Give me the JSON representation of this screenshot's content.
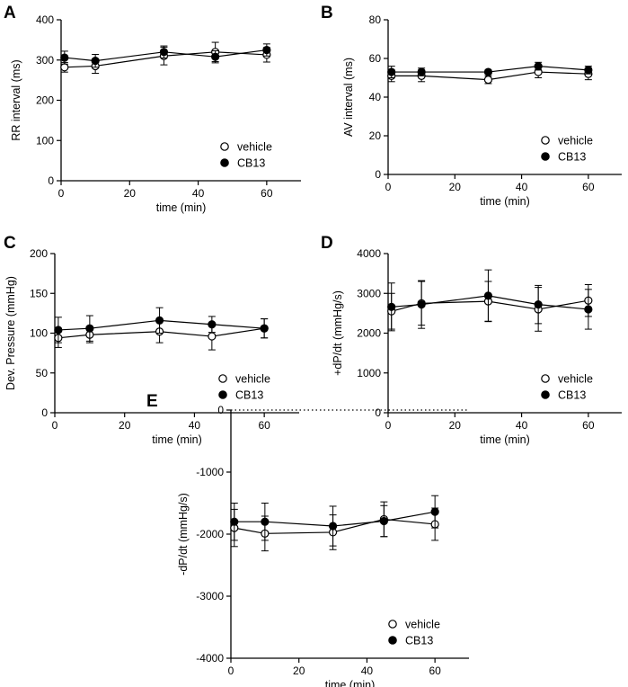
{
  "chart_data": [
    {
      "id": "A",
      "panel_label": "A",
      "type": "line",
      "xlabel": "time (min)",
      "ylabel": "RR interval (ms)",
      "xlim": [
        0,
        70
      ],
      "ylim": [
        0,
        400
      ],
      "xticks": [
        0,
        20,
        40,
        60
      ],
      "yticks": [
        0,
        100,
        200,
        300,
        400
      ],
      "x": [
        1,
        10,
        30,
        45,
        60
      ],
      "series": [
        {
          "name": "vehicle",
          "marker": "open",
          "values": [
            282,
            285,
            310,
            320,
            313
          ],
          "errors": [
            12,
            18,
            22,
            24,
            18
          ]
        },
        {
          "name": "CB13",
          "marker": "filled",
          "values": [
            306,
            298,
            320,
            308,
            325
          ],
          "errors": [
            16,
            16,
            15,
            15,
            15
          ]
        }
      ],
      "legend_position": "bottom-right"
    },
    {
      "id": "B",
      "panel_label": "B",
      "type": "line",
      "xlabel": "time (min)",
      "ylabel": "AV interval (ms)",
      "xlim": [
        0,
        70
      ],
      "ylim": [
        0,
        80
      ],
      "xticks": [
        0,
        20,
        40,
        60
      ],
      "yticks": [
        0,
        20,
        40,
        60,
        80
      ],
      "x": [
        1,
        10,
        30,
        45,
        60
      ],
      "series": [
        {
          "name": "vehicle",
          "marker": "open",
          "values": [
            51,
            51,
            49,
            53,
            52
          ],
          "errors": [
            3,
            3,
            2,
            3,
            3
          ]
        },
        {
          "name": "CB13",
          "marker": "filled",
          "values": [
            53,
            53,
            53,
            56,
            54
          ],
          "errors": [
            3,
            2,
            1,
            2,
            2
          ]
        }
      ],
      "legend_position": "bottom-right"
    },
    {
      "id": "C",
      "panel_label": "C",
      "type": "line",
      "xlabel": "time (min)",
      "ylabel": "Dev. Pressure (mmHg)",
      "xlim": [
        0,
        70
      ],
      "ylim": [
        0,
        200
      ],
      "xticks": [
        0,
        20,
        40,
        60
      ],
      "yticks": [
        0,
        50,
        100,
        150,
        200
      ],
      "x": [
        1,
        10,
        30,
        45,
        60
      ],
      "series": [
        {
          "name": "vehicle",
          "marker": "open",
          "values": [
            94,
            98,
            102,
            96,
            106
          ],
          "errors": [
            12,
            10,
            14,
            17,
            12
          ]
        },
        {
          "name": "CB13",
          "marker": "filled",
          "values": [
            104,
            106,
            116,
            111,
            106
          ],
          "errors": [
            16,
            16,
            16,
            10,
            12
          ]
        }
      ],
      "legend_position": "bottom-right"
    },
    {
      "id": "D",
      "panel_label": "D",
      "type": "line",
      "xlabel": "time (min)",
      "ylabel": "+dP/dt (mmHg/s)",
      "xlim": [
        0,
        70
      ],
      "ylim": [
        0,
        4000
      ],
      "xticks": [
        0,
        20,
        40,
        60
      ],
      "yticks": [
        0,
        1000,
        2000,
        3000,
        4000
      ],
      "x": [
        1,
        10,
        30,
        45,
        60
      ],
      "series": [
        {
          "name": "vehicle",
          "marker": "open",
          "values": [
            2550,
            2750,
            2800,
            2600,
            2820
          ],
          "errors": [
            450,
            550,
            500,
            550,
            400
          ]
        },
        {
          "name": "CB13",
          "marker": "filled",
          "values": [
            2660,
            2720,
            2940,
            2720,
            2600
          ],
          "errors": [
            600,
            600,
            650,
            480,
            500
          ]
        }
      ],
      "legend_position": "bottom-right"
    },
    {
      "id": "E",
      "panel_label": "E",
      "type": "line",
      "xlabel": "time (min)",
      "ylabel": "-dP/dt (mmHg/s)",
      "xlim": [
        0,
        70
      ],
      "ylim": [
        -4000,
        0
      ],
      "xticks": [
        0,
        20,
        40,
        60
      ],
      "yticks": [
        0,
        -1000,
        -2000,
        -3000,
        -4000
      ],
      "ytick_labels": [
        "0",
        "-1000",
        "-2000",
        "-3000",
        "-4000"
      ],
      "zero_line": "dotted",
      "x": [
        1,
        10,
        30,
        45,
        60
      ],
      "series": [
        {
          "name": "vehicle",
          "marker": "open",
          "values": [
            -1900,
            -1990,
            -1970,
            -1760,
            -1840
          ],
          "errors": [
            300,
            280,
            280,
            280,
            260
          ]
        },
        {
          "name": "CB13",
          "marker": "filled",
          "values": [
            -1800,
            -1800,
            -1870,
            -1790,
            -1640
          ],
          "errors": [
            300,
            300,
            320,
            250,
            260
          ]
        }
      ],
      "legend_position": "bottom-right"
    }
  ]
}
